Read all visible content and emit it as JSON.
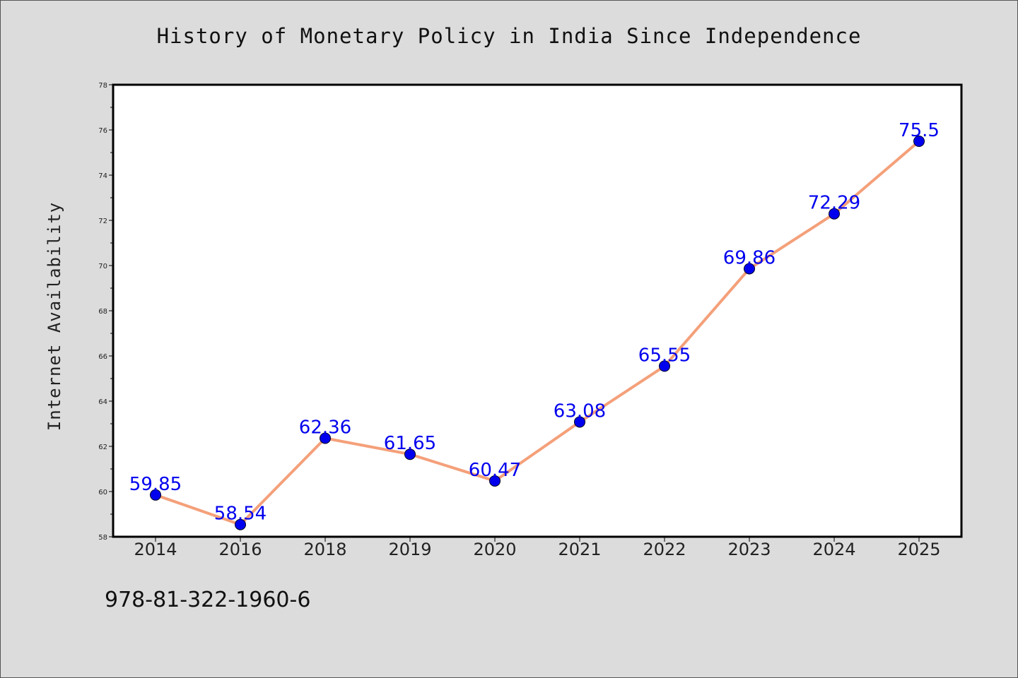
{
  "chart_data": {
    "type": "line",
    "title": "History of Monetary Policy in India Since Independence",
    "xlabel": "",
    "ylabel": "Internet Availability",
    "categories": [
      "2014",
      "2016",
      "2018",
      "2019",
      "2020",
      "2021",
      "2022",
      "2023",
      "2024",
      "2025"
    ],
    "series": [
      {
        "values": [
          59.85,
          58.54,
          62.36,
          61.65,
          60.47,
          63.08,
          65.55,
          69.86,
          72.29,
          75.5
        ],
        "data_labels": [
          "59.85",
          "58.54",
          "62.36",
          "61.65",
          "60.47",
          "63.08",
          "65.55",
          "69.86",
          "72.29",
          "75.5"
        ]
      }
    ],
    "ylim": [
      58,
      78
    ],
    "yticks": [
      58,
      60,
      62,
      64,
      66,
      68,
      70,
      72,
      74,
      76,
      78
    ],
    "ytick_labels": [
      "58",
      "60",
      "62",
      "64",
      "66",
      "68",
      "70",
      "72",
      "74",
      "76",
      "78"
    ],
    "grid": false,
    "legend": "none",
    "line_color": "#f4a07a",
    "marker_color": "#0000ee",
    "label_color": "#0000ee"
  },
  "footer": {
    "identifier": "978-81-322-1960-6"
  }
}
